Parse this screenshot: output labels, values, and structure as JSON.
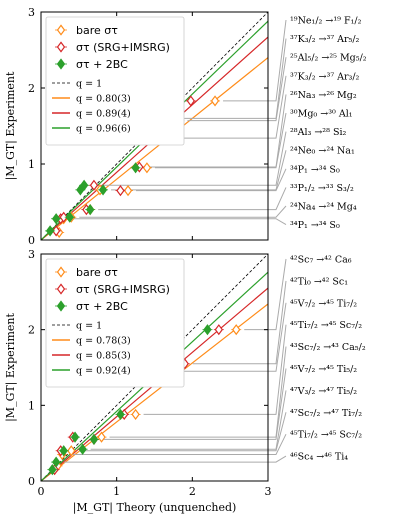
{
  "chart_data": [
    {
      "type": "scatter",
      "panel": "top",
      "xlim": [
        0,
        3
      ],
      "ylim": [
        0,
        3
      ],
      "xticks": [
        "0",
        "1",
        "2",
        "3"
      ],
      "yticks": [
        "0",
        "1",
        "2",
        "3"
      ],
      "ylabel": "|M_GT| Experiment",
      "xlabel": "",
      "grid": false,
      "legend_position": "top-left",
      "legend_markers": [
        "bare στ",
        "στ (SRG+IMSRG)",
        "στ + 2BC"
      ],
      "legend_lines": [
        {
          "label": "q = 1",
          "slope": 1.0,
          "color": "#000000",
          "dashed": true
        },
        {
          "label": "q = 0.80(3)",
          "slope": 0.8,
          "color": "#ff8c1a"
        },
        {
          "label": "q = 0.89(4)",
          "slope": 0.89,
          "color": "#d62728"
        },
        {
          "label": "q = 0.96(6)",
          "slope": 0.96,
          "color": "#2ca02c"
        }
      ],
      "series": [
        {
          "name": "bare στ",
          "color": "#ff8c1a",
          "marker": "diamond-open",
          "points": [
            {
              "x": 0.24,
              "y": 0.1
            },
            {
              "x": 0.3,
              "y": 0.28
            },
            {
              "x": 0.4,
              "y": 0.3
            },
            {
              "x": 0.65,
              "y": 0.4
            },
            {
              "x": 0.78,
              "y": 0.66
            },
            {
              "x": 1.15,
              "y": 0.65
            },
            {
              "x": 1.4,
              "y": 0.95
            },
            {
              "x": 1.83,
              "y": 1.57
            },
            {
              "x": 2.3,
              "y": 1.83
            }
          ]
        },
        {
          "name": "στ (SRG+IMSRG)",
          "color": "#d62728",
          "marker": "diamond-open",
          "points": [
            {
              "x": 0.2,
              "y": 0.12
            },
            {
              "x": 0.26,
              "y": 0.28
            },
            {
              "x": 0.3,
              "y": 0.3
            },
            {
              "x": 0.6,
              "y": 0.4
            },
            {
              "x": 0.7,
              "y": 0.72
            },
            {
              "x": 1.05,
              "y": 0.65
            },
            {
              "x": 1.3,
              "y": 0.96
            },
            {
              "x": 1.55,
              "y": 1.6
            },
            {
              "x": 1.98,
              "y": 1.83
            }
          ]
        },
        {
          "name": "στ + 2BC",
          "color": "#2ca02c",
          "marker": "diamond-filled",
          "points": [
            {
              "x": 0.12,
              "y": 0.12
            },
            {
              "x": 0.2,
              "y": 0.28
            },
            {
              "x": 0.38,
              "y": 0.3
            },
            {
              "x": 0.52,
              "y": 0.66
            },
            {
              "x": 0.57,
              "y": 0.72
            },
            {
              "x": 0.65,
              "y": 0.4
            },
            {
              "x": 0.82,
              "y": 0.66
            },
            {
              "x": 0.82,
              "y": 1.34
            },
            {
              "x": 1.25,
              "y": 0.95
            },
            {
              "x": 1.6,
              "y": 1.6
            },
            {
              "x": 1.73,
              "y": 1.83
            }
          ]
        }
      ],
      "transitions": [
        "¹⁹Ne₁/₂ →¹⁹ F₁/₂",
        "³⁷K₃/₂ →³⁷ Ar₅/₂",
        "²⁵Al₅/₂ →²⁵ Mg₅/₂",
        "³⁷K₃/₂ →³⁷ Ar₃/₂",
        "²⁶Na₃ →²⁶ Mg₂",
        "³⁰Mg₀ →³⁰ Al₁",
        "²⁸Al₃ →²⁸ Si₂",
        "²⁴Ne₀ →²⁴ Na₁",
        "³⁴P₁ →³⁴ S₀",
        "³³P₁/₂ →³³ S₃/₂",
        "²⁴Na₄ →²⁴ Mg₄",
        "³⁴P₁ →³⁴ S₀"
      ]
    },
    {
      "type": "scatter",
      "panel": "bottom",
      "xlim": [
        0,
        3
      ],
      "ylim": [
        0,
        3
      ],
      "xticks": [
        "0",
        "1",
        "2",
        "3"
      ],
      "yticks": [
        "0",
        "1",
        "2",
        "3"
      ],
      "ylabel": "|M_GT| Experiment",
      "xlabel": "|M_GT| Theory (unquenched)",
      "grid": false,
      "legend_position": "top-left",
      "legend_markers": [
        "bare στ",
        "στ (SRG+IMSRG)",
        "στ + 2BC"
      ],
      "legend_lines": [
        {
          "label": "q = 1",
          "slope": 1.0,
          "color": "#000000",
          "dashed": true
        },
        {
          "label": "q = 0.78(3)",
          "slope": 0.78,
          "color": "#ff8c1a"
        },
        {
          "label": "q = 0.85(3)",
          "slope": 0.85,
          "color": "#d62728"
        },
        {
          "label": "q = 0.92(4)",
          "slope": 0.92,
          "color": "#2ca02c"
        }
      ],
      "series": [
        {
          "name": "bare στ",
          "color": "#ff8c1a",
          "marker": "diamond-open",
          "points": [
            {
              "x": 0.22,
              "y": 0.2
            },
            {
              "x": 0.28,
              "y": 0.35
            },
            {
              "x": 0.4,
              "y": 0.4
            },
            {
              "x": 0.8,
              "y": 0.58
            },
            {
              "x": 1.25,
              "y": 0.88
            },
            {
              "x": 1.75,
              "y": 1.55
            },
            {
              "x": 2.58,
              "y": 2.0
            }
          ]
        },
        {
          "name": "στ (SRG+IMSRG)",
          "color": "#d62728",
          "marker": "diamond-open",
          "points": [
            {
              "x": 0.18,
              "y": 0.15
            },
            {
              "x": 0.26,
              "y": 0.4
            },
            {
              "x": 0.42,
              "y": 0.58
            },
            {
              "x": 0.7,
              "y": 0.55
            },
            {
              "x": 1.1,
              "y": 0.88
            },
            {
              "x": 1.52,
              "y": 1.45
            },
            {
              "x": 1.9,
              "y": 1.55
            },
            {
              "x": 2.35,
              "y": 2.0
            }
          ]
        },
        {
          "name": "στ + 2BC",
          "color": "#2ca02c",
          "marker": "diamond-filled",
          "points": [
            {
              "x": 0.15,
              "y": 0.15
            },
            {
              "x": 0.2,
              "y": 0.25
            },
            {
              "x": 0.3,
              "y": 0.4
            },
            {
              "x": 0.45,
              "y": 0.58
            },
            {
              "x": 0.55,
              "y": 0.42
            },
            {
              "x": 0.7,
              "y": 0.55
            },
            {
              "x": 1.05,
              "y": 0.88
            },
            {
              "x": 1.4,
              "y": 1.45
            },
            {
              "x": 1.73,
              "y": 1.55
            },
            {
              "x": 2.2,
              "y": 2.0
            }
          ]
        }
      ],
      "transitions": [
        "⁴²Sc₇ →⁴² Ca₆",
        "⁴²Ti₀ →⁴² Sc₁",
        "⁴⁵V₇/₂ →⁴⁵ Ti₇/₂",
        "⁴⁵Ti₇/₂ →⁴⁵ Sc₇/₂",
        "⁴³Sc₇/₂ →⁴³ Ca₅/₂",
        "⁴⁵V₇/₂ →⁴⁵ Ti₅/₂",
        "⁴⁷V₃/₂ →⁴⁷ Ti₅/₂",
        "⁴⁷Sc₇/₂ →⁴⁷ Ti₇/₂",
        "⁴⁵Ti₇/₂ →⁴⁵ Sc₇/₂",
        "⁴⁶Sc₄ →⁴⁶ Ti₄"
      ]
    }
  ]
}
